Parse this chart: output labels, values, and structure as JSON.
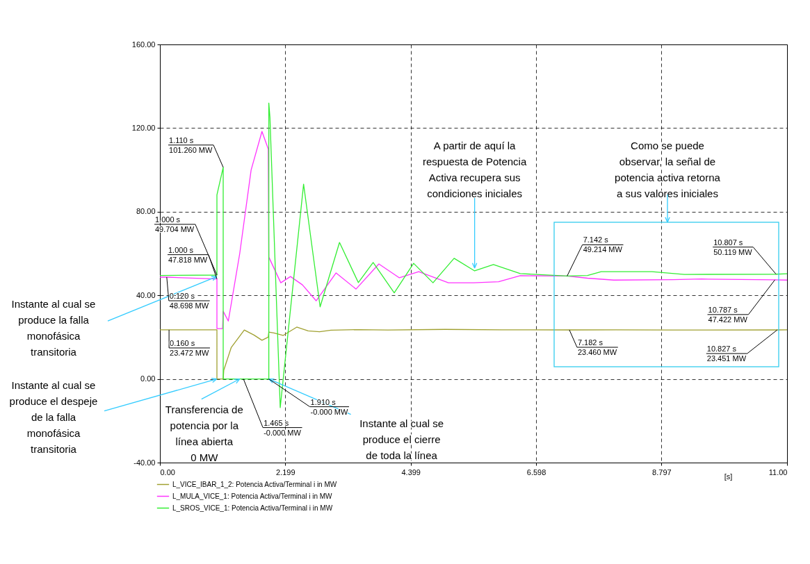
{
  "chart_data": {
    "type": "line",
    "xlabel": "[s]",
    "xlim": [
      0,
      11
    ],
    "xticks": [
      {
        "value": 0,
        "label": "0.00"
      },
      2.199,
      4.399,
      6.598,
      8.797,
      {
        "value": 11,
        "label": "11.00"
      }
    ],
    "ylim": [
      -40,
      160
    ],
    "yticks": [
      {
        "value": -40,
        "label": "-40.00"
      },
      {
        "value": 0,
        "label": "0.00"
      },
      {
        "value": 40,
        "label": "40.00"
      },
      {
        "value": 80,
        "label": "80.00"
      },
      {
        "value": 120,
        "label": "120.00"
      },
      {
        "value": 160,
        "label": "160.00"
      }
    ],
    "grid": true,
    "legend": "bottom left",
    "series": [
      {
        "name": "L_VICE_IBAR_1_2: Potencia Activa/Terminal i in MW",
        "color": "#a0a030",
        "x": [
          0,
          0.16,
          1.0,
          1.0,
          1.11,
          1.12,
          1.25,
          1.48,
          1.65,
          1.79,
          1.9,
          1.91,
          2.0,
          2.16,
          2.4,
          2.6,
          2.8,
          3.0,
          3.5,
          4.0,
          5.0,
          6.0,
          7.182,
          8.0,
          9.0,
          10.827,
          11.0
        ],
        "values": [
          23.5,
          23.472,
          23.5,
          0,
          0,
          4.2,
          15,
          23.4,
          21,
          18.5,
          20,
          22.4,
          22,
          20.8,
          24.8,
          23,
          22.6,
          23.3,
          23.6,
          23.4,
          23.7,
          23.5,
          23.46,
          23.5,
          23.4,
          23.451,
          23.5
        ]
      },
      {
        "name": "L_MULA_VICE_1: Potencia Activa/Terminal i in MW",
        "color": "#ff33ff",
        "x": [
          0,
          0.12,
          1.0,
          1.0,
          1.1,
          1.11,
          1.2,
          1.4,
          1.6,
          1.79,
          1.9,
          1.91,
          2.12,
          2.29,
          2.5,
          2.74,
          3.09,
          3.44,
          3.84,
          4.2,
          4.54,
          5.06,
          5.5,
          5.94,
          6.32,
          7.142,
          7.5,
          7.96,
          9.0,
          9.5,
          10.787,
          11.0
        ],
        "values": [
          48.7,
          48.698,
          47.818,
          24.1,
          24.1,
          32.4,
          27.7,
          60,
          100,
          118.4,
          110,
          58.3,
          46,
          49,
          45,
          37.4,
          50.7,
          43,
          55,
          48.4,
          51.3,
          46,
          46,
          46.5,
          49.4,
          49.214,
          48.2,
          47.3,
          47.5,
          47.8,
          47.422,
          47.3
        ]
      },
      {
        "name": "L_SROS_VICE_1: Potencia Activa/Terminal i in MW",
        "color": "#33ee33",
        "x": [
          0,
          1.0,
          1.0,
          1.11,
          1.11,
          1.465,
          1.91,
          1.91,
          1.93,
          2.11,
          2.52,
          2.81,
          3.15,
          3.48,
          3.74,
          4.11,
          4.45,
          4.79,
          5.16,
          5.52,
          5.85,
          6.32,
          7.142,
          7.5,
          7.74,
          8.63,
          9.2,
          10.807,
          11.0
        ],
        "values": [
          49.5,
          49.704,
          88,
          101.26,
          0,
          0,
          0,
          132,
          125,
          -13.7,
          93.2,
          34.5,
          65.3,
          46.1,
          55.7,
          41.2,
          55.3,
          46,
          57.7,
          51.7,
          54.7,
          50.4,
          49.214,
          49.5,
          51.3,
          51.3,
          50,
          50.119,
          50.3
        ]
      }
    ],
    "annotations": [
      {
        "text": "Instante al cual se\nproduce la falla\nmonofásica\ntransitoria",
        "x": 1.0,
        "y": 49
      },
      {
        "text": "Instante al cual se\nproduce el despeje\nde la falla\nmonofásica\ntransitoria",
        "x": 1.0,
        "y": 0
      },
      {
        "text": "Transferencia de\npotencia por la\nlínea abierta\n0 MW",
        "x": 1.4,
        "y": 0
      },
      {
        "text": "Instante al cual se\nproduce el cierre\nde toda la línea",
        "x": 1.91,
        "y": 0
      },
      {
        "text": "A partir de aquí la\nrespuesta de Potencia\nActiva recupera sus\ncondiciones iniciales",
        "x": 5.52,
        "y": 53
      },
      "Como se puede\nobservar, la señal de\npotencia activa retorna\na sus valores iniciales",
      {
        "text": "1.110 s\n101.260 MW",
        "x": 1.11,
        "y": 101.26
      },
      {
        "text": "1.000 s\n49.704 MW",
        "x": 1.0,
        "y": 49.704
      },
      {
        "text": "1.000 s\n47.818 MW",
        "x": 1.0,
        "y": 47.818
      },
      {
        "text": "0.120 s\n48.698 MW",
        "x": 0.12,
        "y": 48.698
      },
      {
        "text": "0.160 s\n23.472 MW",
        "x": 0.16,
        "y": 23.472
      },
      {
        "text": "1.465 s\n-0.000 MW",
        "x": 1.465,
        "y": 0
      },
      {
        "text": "1.910 s\n-0.000 MW",
        "x": 1.91,
        "y": 0
      },
      {
        "text": "7.142 s\n49.214 MW",
        "x": 7.142,
        "y": 49.214
      },
      {
        "text": "10.807 s\n50.119 MW",
        "x": 10.807,
        "y": 50.119
      },
      {
        "text": "10.787 s\n47.422 MW",
        "x": 10.787,
        "y": 47.422
      },
      {
        "text": "7.182 s\n23.460 MW",
        "x": 7.182,
        "y": 23.46
      },
      {
        "text": "10.827 s\n23.451 MW",
        "x": 10.827,
        "y": 23.451
      }
    ]
  }
}
